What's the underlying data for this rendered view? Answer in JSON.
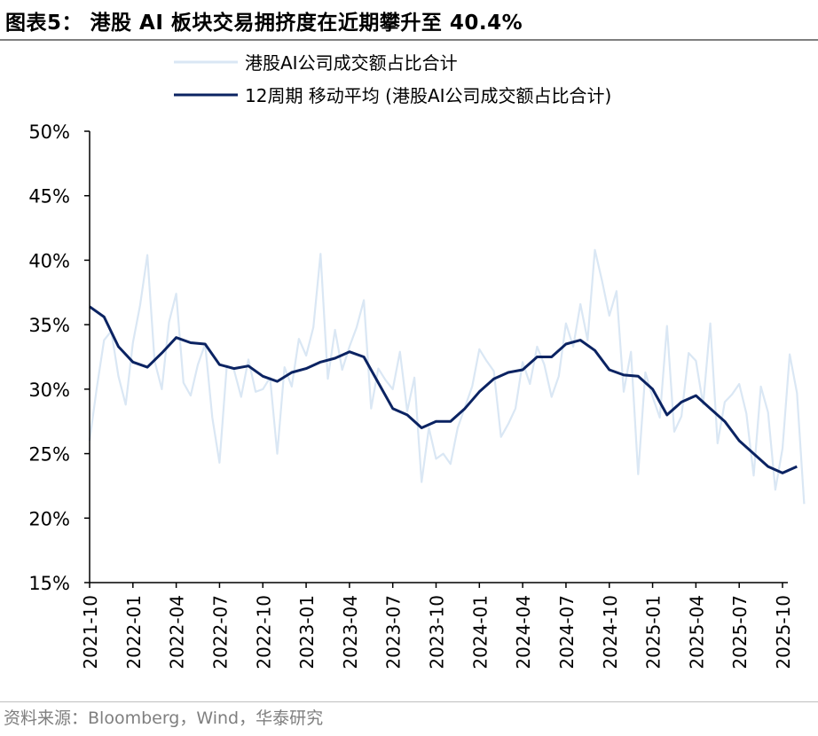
{
  "title": "图表5：  港股 AI 板块交易拥挤度在近期攀升至 40.4%",
  "source": "资料来源：Bloomberg，Wind，华泰研究",
  "colors": {
    "raw": "#dae7f4",
    "ma": "#0b2362",
    "axis": "#000000"
  },
  "chart_data": {
    "type": "line",
    "title": "港股 AI 板块交易拥挤度在近期攀升至 40.4%",
    "xlabel": "",
    "ylabel": "",
    "ylim": [
      15,
      50
    ],
    "yticks": [
      "15%",
      "20%",
      "25%",
      "30%",
      "35%",
      "40%",
      "45%",
      "50%"
    ],
    "xlim": [
      "2021-10",
      "2025-11"
    ],
    "xticks": [
      "2021-10",
      "2022-01",
      "2022-04",
      "2022-07",
      "2022-10",
      "2023-01",
      "2023-04",
      "2023-07",
      "2023-10",
      "2024-01",
      "2024-04",
      "2024-07",
      "2024-10",
      "2025-01",
      "2025-04",
      "2025-07",
      "2025-10"
    ],
    "legend": "top-center",
    "series": [
      {
        "name": "港股AI公司成交额占比合计",
        "t": [
          0,
          0.5,
          1,
          1.5,
          2,
          2.5,
          3,
          3.5,
          4,
          4.5,
          5,
          5.5,
          6,
          6.5,
          7,
          7.5,
          8,
          8.5,
          9,
          9.5,
          10,
          10.5,
          11,
          11.5,
          12,
          12.5,
          13,
          13.5,
          14,
          14.5,
          15,
          15.5,
          16,
          16.5,
          17,
          17.5,
          18,
          18.5,
          19,
          19.5,
          20,
          20.5,
          21,
          21.5,
          22,
          22.5,
          23,
          23.5,
          24,
          24.5,
          25,
          25.5,
          26,
          26.5,
          27,
          27.5,
          28,
          28.5,
          29,
          29.5,
          30,
          30.5,
          31,
          31.5,
          32,
          32.5,
          33,
          33.5,
          34,
          34.5,
          35,
          35.5,
          36,
          36.5,
          37,
          37.5,
          38,
          38.5,
          39,
          39.5,
          40,
          40.5,
          41,
          41.5,
          42,
          42.5,
          43,
          43.5,
          44,
          44.5,
          45,
          45.5,
          46,
          46.5,
          47,
          47.5,
          48,
          48.5,
          49,
          49.5
        ],
        "values": [
          26.0,
          30.1,
          33.8,
          34.5,
          31.0,
          28.8,
          33.6,
          36.5,
          40.4,
          32.2,
          30.0,
          35.2,
          37.4,
          30.5,
          29.5,
          31.9,
          33.5,
          27.8,
          24.3,
          31.8,
          31.5,
          29.4,
          32.3,
          29.8,
          30.0,
          30.9,
          25.0,
          31.7,
          30.2,
          33.9,
          32.6,
          34.8,
          40.5,
          30.8,
          34.6,
          31.5,
          33.3,
          34.8,
          36.9,
          28.5,
          31.6,
          30.7,
          30.0,
          32.9,
          28.3,
          30.9,
          22.8,
          27.0,
          24.6,
          25.0,
          24.2,
          27.0,
          28.6,
          30.2,
          33.1,
          32.2,
          31.4,
          26.3,
          27.3,
          28.5,
          32.1,
          30.4,
          33.3,
          31.9,
          29.4,
          31.0,
          35.1,
          33.3,
          36.6,
          33.8,
          40.8,
          38.4,
          35.7,
          37.6,
          29.8,
          32.9,
          23.4,
          31.3,
          29.4,
          27.8,
          34.9,
          26.7,
          27.9,
          32.8,
          32.2,
          28.8,
          35.1,
          25.8,
          29.0,
          29.6,
          30.4,
          28.1,
          23.3,
          30.2,
          28.2,
          22.2,
          25.4,
          32.7,
          29.7,
          21.1
        ]
      },
      {
        "name": "12周期 移动平均 (港股AI公司成交额占比合计)",
        "t": [
          0,
          1,
          2,
          3,
          4,
          5,
          6,
          7,
          8,
          9,
          10,
          11,
          12,
          13,
          14,
          15,
          16,
          17,
          18,
          19,
          20,
          21,
          22,
          23,
          24,
          25,
          26,
          27,
          28,
          29,
          30,
          31,
          32,
          33,
          34,
          35,
          36,
          37,
          38,
          39,
          40,
          41,
          42,
          43,
          44,
          45,
          46,
          47,
          48,
          49
        ],
        "values": [
          36.4,
          35.6,
          33.3,
          32.1,
          31.7,
          32.8,
          34.0,
          33.6,
          33.5,
          31.9,
          31.6,
          31.8,
          31.0,
          30.6,
          31.3,
          31.6,
          32.1,
          32.4,
          32.9,
          32.5,
          30.5,
          28.5,
          28.0,
          27.0,
          27.5,
          27.5,
          28.5,
          29.8,
          30.8,
          31.3,
          31.5,
          32.5,
          32.5,
          33.5,
          33.8,
          33.0,
          31.5,
          31.1,
          31.0,
          30.0,
          28.0,
          29.0,
          29.5,
          28.5,
          27.5,
          26.0,
          25.0,
          24.0,
          23.5,
          24.0
        ]
      }
    ]
  }
}
